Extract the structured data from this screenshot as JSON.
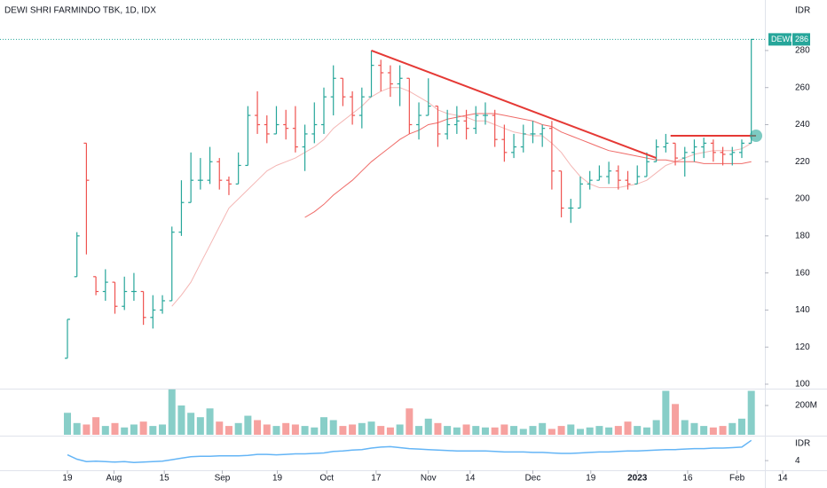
{
  "chart_data": {
    "type": "ohlc",
    "title": "DEWI SHRI FARMINDO TBK, 1D, IDX",
    "currency": "IDR",
    "symbol": "DEWI",
    "last_price": 286,
    "xlim": [
      -0.56,
      75.3
    ],
    "xticks": [
      {
        "value": 0,
        "label": "19"
      },
      {
        "value": 4.9,
        "label": "Aug"
      },
      {
        "value": 10.2,
        "label": "15"
      },
      {
        "value": 16.3,
        "label": "Sep"
      },
      {
        "value": 22.1,
        "label": "19"
      },
      {
        "value": 27.3,
        "label": "Oct"
      },
      {
        "value": 32.5,
        "label": "17"
      },
      {
        "value": 38,
        "label": "Nov"
      },
      {
        "value": 42.4,
        "label": "14"
      },
      {
        "value": 49,
        "label": "Dec"
      },
      {
        "value": 55.1,
        "label": "19"
      },
      {
        "value": 60,
        "label": "2023"
      },
      {
        "value": 65.3,
        "label": "16"
      },
      {
        "value": 70.5,
        "label": "Feb"
      },
      {
        "value": 75.3,
        "label": "14"
      }
    ],
    "ylim": [
      97.6,
      288.1
    ],
    "yticks": [
      100,
      120,
      140,
      160,
      180,
      200,
      220,
      240,
      260,
      280
    ],
    "up_color": "#26a69a",
    "down_color": "#ef5350",
    "open": [
      114,
      158,
      230,
      158,
      150,
      155,
      142,
      150,
      150,
      136,
      140,
      145,
      182,
      198,
      210,
      210,
      220,
      210,
      208,
      218,
      245,
      240,
      235,
      240,
      238,
      228,
      235,
      240,
      255,
      265,
      255,
      245,
      255,
      272,
      268,
      262,
      265,
      240,
      245,
      250,
      235,
      240,
      242,
      238,
      245,
      245,
      232,
      225,
      228,
      235,
      235,
      238,
      215,
      195,
      195,
      208,
      210,
      212,
      215,
      210,
      208,
      212,
      220,
      228,
      230,
      222,
      225,
      228,
      230,
      225,
      224,
      225,
      230
    ],
    "high": [
      135,
      182,
      230,
      158,
      162,
      155,
      158,
      160,
      150,
      148,
      148,
      185,
      210,
      225,
      222,
      228,
      222,
      212,
      225,
      250,
      258,
      245,
      250,
      248,
      250,
      240,
      252,
      260,
      272,
      265,
      258,
      260,
      280,
      275,
      272,
      272,
      265,
      252,
      265,
      250,
      248,
      250,
      248,
      250,
      252,
      248,
      240,
      235,
      240,
      242,
      240,
      242,
      215,
      200,
      212,
      215,
      218,
      220,
      218,
      215,
      218,
      225,
      232,
      235,
      230,
      228,
      232,
      233,
      232,
      228,
      228,
      232,
      286
    ],
    "low": [
      114,
      158,
      170,
      148,
      145,
      138,
      140,
      145,
      132,
      130,
      138,
      145,
      180,
      198,
      205,
      208,
      205,
      202,
      208,
      218,
      235,
      230,
      235,
      232,
      225,
      215,
      230,
      235,
      245,
      250,
      240,
      238,
      255,
      258,
      255,
      250,
      235,
      232,
      245,
      228,
      232,
      235,
      232,
      235,
      240,
      228,
      220,
      222,
      225,
      230,
      228,
      205,
      190,
      187,
      195,
      205,
      210,
      208,
      205,
      205,
      208,
      212,
      220,
      225,
      218,
      212,
      220,
      222,
      220,
      218,
      218,
      222,
      230
    ],
    "close": [
      135,
      180,
      210,
      150,
      155,
      142,
      150,
      150,
      136,
      140,
      145,
      182,
      198,
      210,
      210,
      220,
      210,
      208,
      218,
      245,
      240,
      235,
      240,
      238,
      228,
      235,
      240,
      255,
      265,
      255,
      245,
      255,
      272,
      268,
      262,
      265,
      240,
      245,
      250,
      235,
      240,
      242,
      238,
      245,
      245,
      232,
      225,
      228,
      235,
      235,
      238,
      215,
      195,
      195,
      208,
      210,
      212,
      215,
      210,
      208,
      212,
      220,
      228,
      230,
      222,
      225,
      228,
      230,
      225,
      224,
      225,
      230,
      286
    ],
    "moving_averages": [
      {
        "color": "#f4b6b4",
        "values": [
          null,
          null,
          null,
          null,
          null,
          null,
          null,
          null,
          null,
          null,
          null,
          142,
          148,
          155,
          165,
          175,
          185,
          195,
          200,
          205,
          210,
          215,
          218,
          220,
          222,
          225,
          228,
          232,
          238,
          242,
          246,
          250,
          255,
          258,
          260,
          260,
          258,
          255,
          252,
          248,
          246,
          245,
          244,
          242,
          242,
          240,
          238,
          236,
          235,
          234,
          234,
          230,
          225,
          218,
          212,
          208,
          206,
          206,
          206,
          207,
          208,
          210,
          214,
          218,
          220,
          222,
          224,
          225,
          226,
          226,
          226,
          227,
          230
        ]
      },
      {
        "color": "#ef6b68",
        "values": [
          null,
          null,
          null,
          null,
          null,
          null,
          null,
          null,
          null,
          null,
          null,
          null,
          null,
          null,
          null,
          null,
          null,
          null,
          null,
          null,
          null,
          null,
          null,
          null,
          null,
          190,
          193,
          197,
          202,
          206,
          210,
          215,
          220,
          224,
          228,
          232,
          235,
          237,
          240,
          241,
          243,
          244,
          245,
          246,
          246,
          246,
          245,
          244,
          243,
          242,
          240,
          239,
          236,
          234,
          232,
          230,
          228,
          226,
          225,
          224,
          223,
          222,
          221,
          221,
          220,
          220,
          220,
          219,
          219,
          219,
          219,
          219,
          220
        ]
      }
    ],
    "trendlines": [
      {
        "color": "#e53935",
        "x": [
          32,
          62
        ],
        "y": [
          280,
          222
        ]
      },
      {
        "color": "#e53935",
        "x": [
          63.5,
          72.5
        ],
        "y": [
          234,
          234
        ]
      }
    ],
    "volume": {
      "ylim": [
        0,
        303
      ],
      "yticks": [
        {
          "value": 200,
          "label": "200M"
        }
      ],
      "values": [
        150,
        80,
        70,
        120,
        60,
        80,
        50,
        70,
        90,
        60,
        70,
        310,
        200,
        150,
        120,
        180,
        90,
        60,
        80,
        130,
        100,
        70,
        60,
        80,
        70,
        60,
        50,
        120,
        100,
        60,
        70,
        80,
        90,
        60,
        50,
        70,
        180,
        60,
        110,
        80,
        60,
        50,
        70,
        60,
        50,
        50,
        70,
        60,
        40,
        60,
        80,
        40,
        60,
        70,
        40,
        50,
        60,
        50,
        60,
        90,
        60,
        50,
        100,
        300,
        210,
        100,
        80,
        60,
        50,
        60,
        80,
        110,
        300
      ]
    },
    "indicator": {
      "unit": "IDR",
      "color": "#64b5f6",
      "ylim": [
        2,
        9
      ],
      "yticks": [
        4
      ],
      "values": [
        5.2,
        4.3,
        3.8,
        3.9,
        3.8,
        3.7,
        3.8,
        3.6,
        3.7,
        3.8,
        3.9,
        4.2,
        4.5,
        4.8,
        4.9,
        4.9,
        5.0,
        5.0,
        5.0,
        5.1,
        5.3,
        5.3,
        5.2,
        5.3,
        5.4,
        5.4,
        5.5,
        5.6,
        5.9,
        6.0,
        6.2,
        6.3,
        6.6,
        6.8,
        6.9,
        6.7,
        6.5,
        6.4,
        6.3,
        6.2,
        6.1,
        6.0,
        6.0,
        6.0,
        6.0,
        5.9,
        5.8,
        5.8,
        5.8,
        5.7,
        5.7,
        5.6,
        5.5,
        5.5,
        5.6,
        5.7,
        5.8,
        5.8,
        5.9,
        6.0,
        6.0,
        6.1,
        6.2,
        6.3,
        6.3,
        6.4,
        6.5,
        6.5,
        6.6,
        6.6,
        6.7,
        6.8,
        8.2
      ]
    }
  }
}
